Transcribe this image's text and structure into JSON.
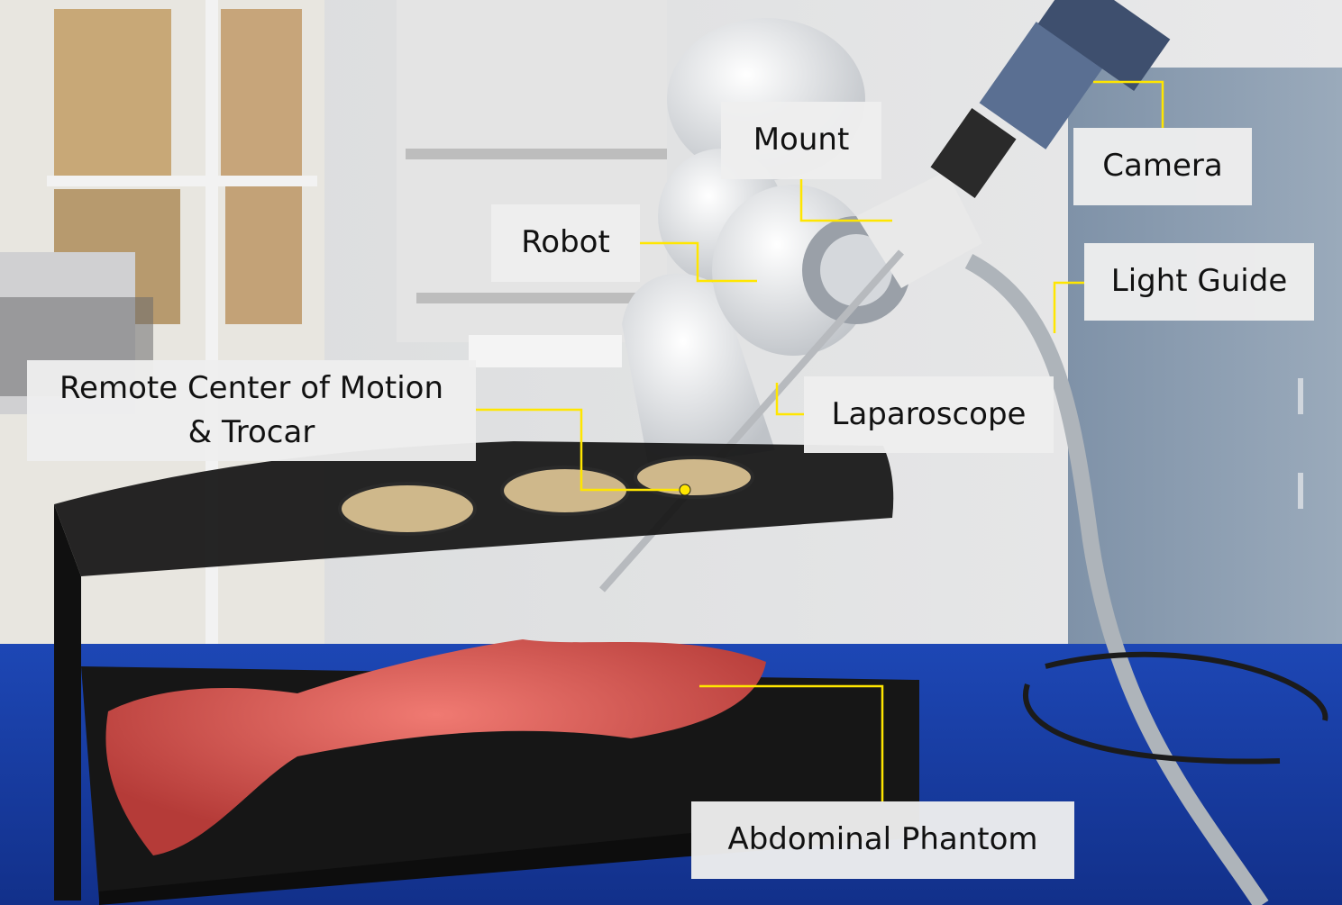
{
  "labels": {
    "mount": "Mount",
    "camera": "Camera",
    "robot": "Robot",
    "light_guide": "Light Guide",
    "rcm": "Remote Center of Motion\n& Trocar",
    "laparoscope": "Laparoscope",
    "phantom": "Abdominal Phantom"
  },
  "colors": {
    "callout": "#ffe600",
    "label_bg": "#eeeeee",
    "drape": "#1a3fa8"
  }
}
